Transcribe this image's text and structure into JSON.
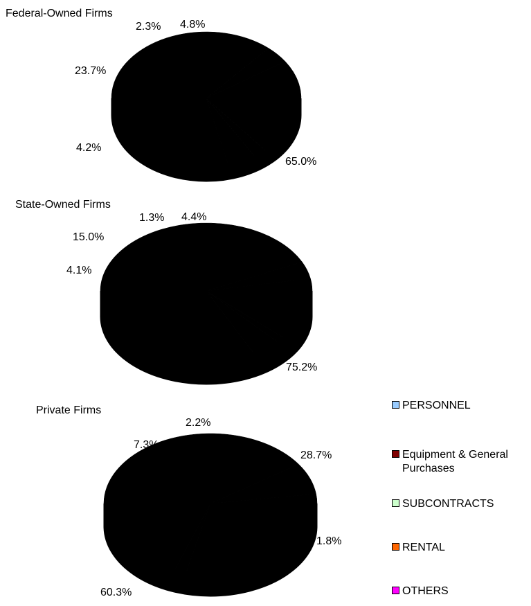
{
  "chart_data": [
    {
      "type": "pie",
      "title": "Federal-Owned Firms",
      "slices": [
        {
          "name": "PERSONNEL",
          "value": 65.0,
          "label": "65.0%"
        },
        {
          "name": "Equipment & General Purchases",
          "value": 4.2,
          "label": "4.2%"
        },
        {
          "name": "SUBCONTRACTS",
          "value": 23.7,
          "label": "23.7%"
        },
        {
          "name": "RENTAL",
          "value": 2.3,
          "label": "2.3%"
        },
        {
          "name": "OTHERS",
          "value": 4.8,
          "label": "4.8%"
        }
      ],
      "style": "3d"
    },
    {
      "type": "pie",
      "title": "State-Owned Firms",
      "slices": [
        {
          "name": "PERSONNEL",
          "value": 75.2,
          "label": "75.2%"
        },
        {
          "name": "Equipment & General Purchases",
          "value": 4.1,
          "label": "4.1%"
        },
        {
          "name": "SUBCONTRACTS",
          "value": 15.0,
          "label": "15.0%"
        },
        {
          "name": "RENTAL",
          "value": 1.3,
          "label": "1.3%"
        },
        {
          "name": "OTHERS",
          "value": 4.4,
          "label": "4.4%"
        }
      ],
      "style": "3d"
    },
    {
      "type": "pie",
      "title": "Private Firms",
      "slices": [
        {
          "name": "PERSONNEL",
          "value": 28.7,
          "label": "28.7%"
        },
        {
          "name": "Equipment & General Purchases",
          "value": 1.8,
          "label": "1.8%"
        },
        {
          "name": "SUBCONTRACTS",
          "value": 60.3,
          "label": "60.3%"
        },
        {
          "name": "RENTAL",
          "value": 7.3,
          "label": "7.3%"
        },
        {
          "name": "OTHERS",
          "value": 2.2,
          "label": "2.2%"
        }
      ],
      "style": "3d"
    }
  ],
  "legend": {
    "items": [
      {
        "label": "PERSONNEL",
        "color": "#99ccff"
      },
      {
        "label": "Equipment & General Purchases",
        "color": "#800000"
      },
      {
        "label": "SUBCONTRACTS",
        "color": "#ccffcc"
      },
      {
        "label": "RENTAL",
        "color": "#ff6600"
      },
      {
        "label": "OTHERS",
        "color": "#ff00ff"
      }
    ],
    "placement": "right"
  },
  "slice_fill": "#000000"
}
